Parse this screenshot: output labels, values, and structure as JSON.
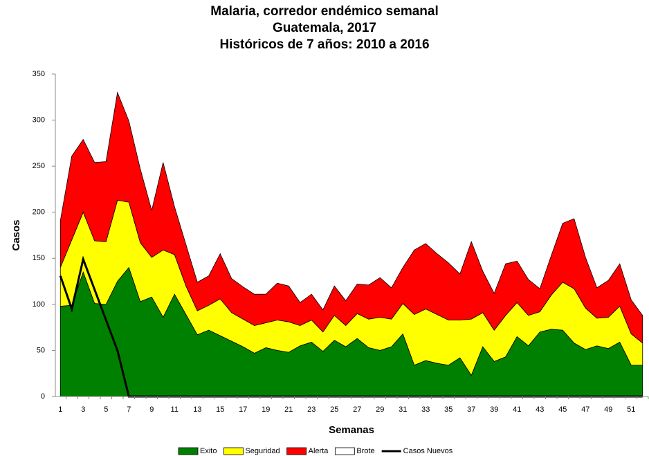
{
  "chart_data": {
    "type": "stacked-area",
    "title": [
      "Malaria, corredor endémico semanal",
      "Guatemala, 2017",
      "Históricos de 7 años: 2010 a 2016"
    ],
    "x_label": "Semanas",
    "y_label": "Casos",
    "categories": [
      1,
      null,
      3,
      null,
      5,
      null,
      7,
      null,
      9,
      null,
      11,
      null,
      13,
      null,
      15,
      null,
      17,
      null,
      19,
      null,
      21,
      null,
      23,
      null,
      25,
      null,
      27,
      null,
      29,
      null,
      31,
      null,
      33,
      null,
      35,
      null,
      37,
      null,
      39,
      null,
      41,
      null,
      43,
      null,
      45,
      null,
      47,
      null,
      49,
      null,
      51,
      null
    ],
    "ylim": [
      0,
      350
    ],
    "yticks": [
      0,
      50,
      100,
      150,
      200,
      250,
      300,
      350
    ],
    "series": [
      {
        "name": "Exito",
        "type": "area",
        "color": "#008000",
        "values": [
          98,
          99,
          135,
          101,
          100,
          125,
          140,
          103,
          108,
          86,
          111,
          89,
          67,
          72,
          66,
          60,
          54,
          47,
          53,
          50,
          48,
          55,
          59,
          49,
          61,
          54,
          63,
          53,
          50,
          54,
          68,
          34,
          39,
          36,
          34,
          42,
          23,
          54,
          38,
          43,
          65,
          55,
          70,
          73,
          72,
          58,
          51,
          55,
          52,
          59,
          34,
          34
        ]
      },
      {
        "name": "Seguridad",
        "type": "area",
        "color": "#ffff00",
        "values": [
          42,
          71,
          65,
          68,
          68,
          88,
          71,
          64,
          43,
          73,
          43,
          31,
          26,
          27,
          40,
          31,
          30,
          30,
          27,
          33,
          33,
          22,
          24,
          21,
          27,
          23,
          27,
          31,
          36,
          30,
          33,
          55,
          56,
          53,
          49,
          41,
          61,
          37,
          34,
          45,
          37,
          33,
          22,
          37,
          52,
          59,
          45,
          30,
          34,
          39,
          34,
          24
        ]
      },
      {
        "name": "Alerta",
        "type": "area",
        "color": "#ff0000",
        "values": [
          51,
          91,
          79,
          85,
          87,
          117,
          88,
          80,
          51,
          95,
          52,
          45,
          31,
          32,
          49,
          37,
          35,
          34,
          31,
          40,
          39,
          25,
          28,
          24,
          32,
          27,
          32,
          37,
          43,
          34,
          39,
          70,
          71,
          66,
          62,
          50,
          84,
          45,
          40,
          56,
          45,
          39,
          25,
          43,
          64,
          76,
          55,
          33,
          40,
          46,
          37,
          30
        ]
      },
      {
        "name": "Brote",
        "type": "area",
        "color": "#ffffff",
        "values": [
          null,
          null,
          null,
          null,
          null,
          null,
          null,
          null,
          null,
          null,
          null,
          null,
          null,
          null,
          null,
          null,
          null,
          null,
          null,
          null,
          null,
          null,
          null,
          null,
          null,
          null,
          null,
          null,
          null,
          null,
          null,
          null,
          null,
          null,
          null,
          null,
          null,
          null,
          null,
          null,
          null,
          null,
          null,
          null,
          null,
          null,
          null,
          null,
          null,
          null,
          null,
          null
        ]
      },
      {
        "name": "Casos Nuevos",
        "type": "line",
        "color": "#000000",
        "values": [
          131,
          95,
          149,
          116,
          83,
          50,
          0,
          0,
          0,
          0,
          0,
          0,
          0,
          0,
          0,
          0,
          0,
          0,
          0,
          0,
          0,
          0,
          0,
          0,
          0,
          0,
          0,
          0,
          0,
          0,
          0,
          0,
          0,
          0,
          0,
          0,
          0,
          0,
          0,
          0,
          0,
          0,
          0,
          0,
          0,
          0,
          0,
          0,
          0,
          0,
          0,
          0
        ]
      }
    ]
  }
}
